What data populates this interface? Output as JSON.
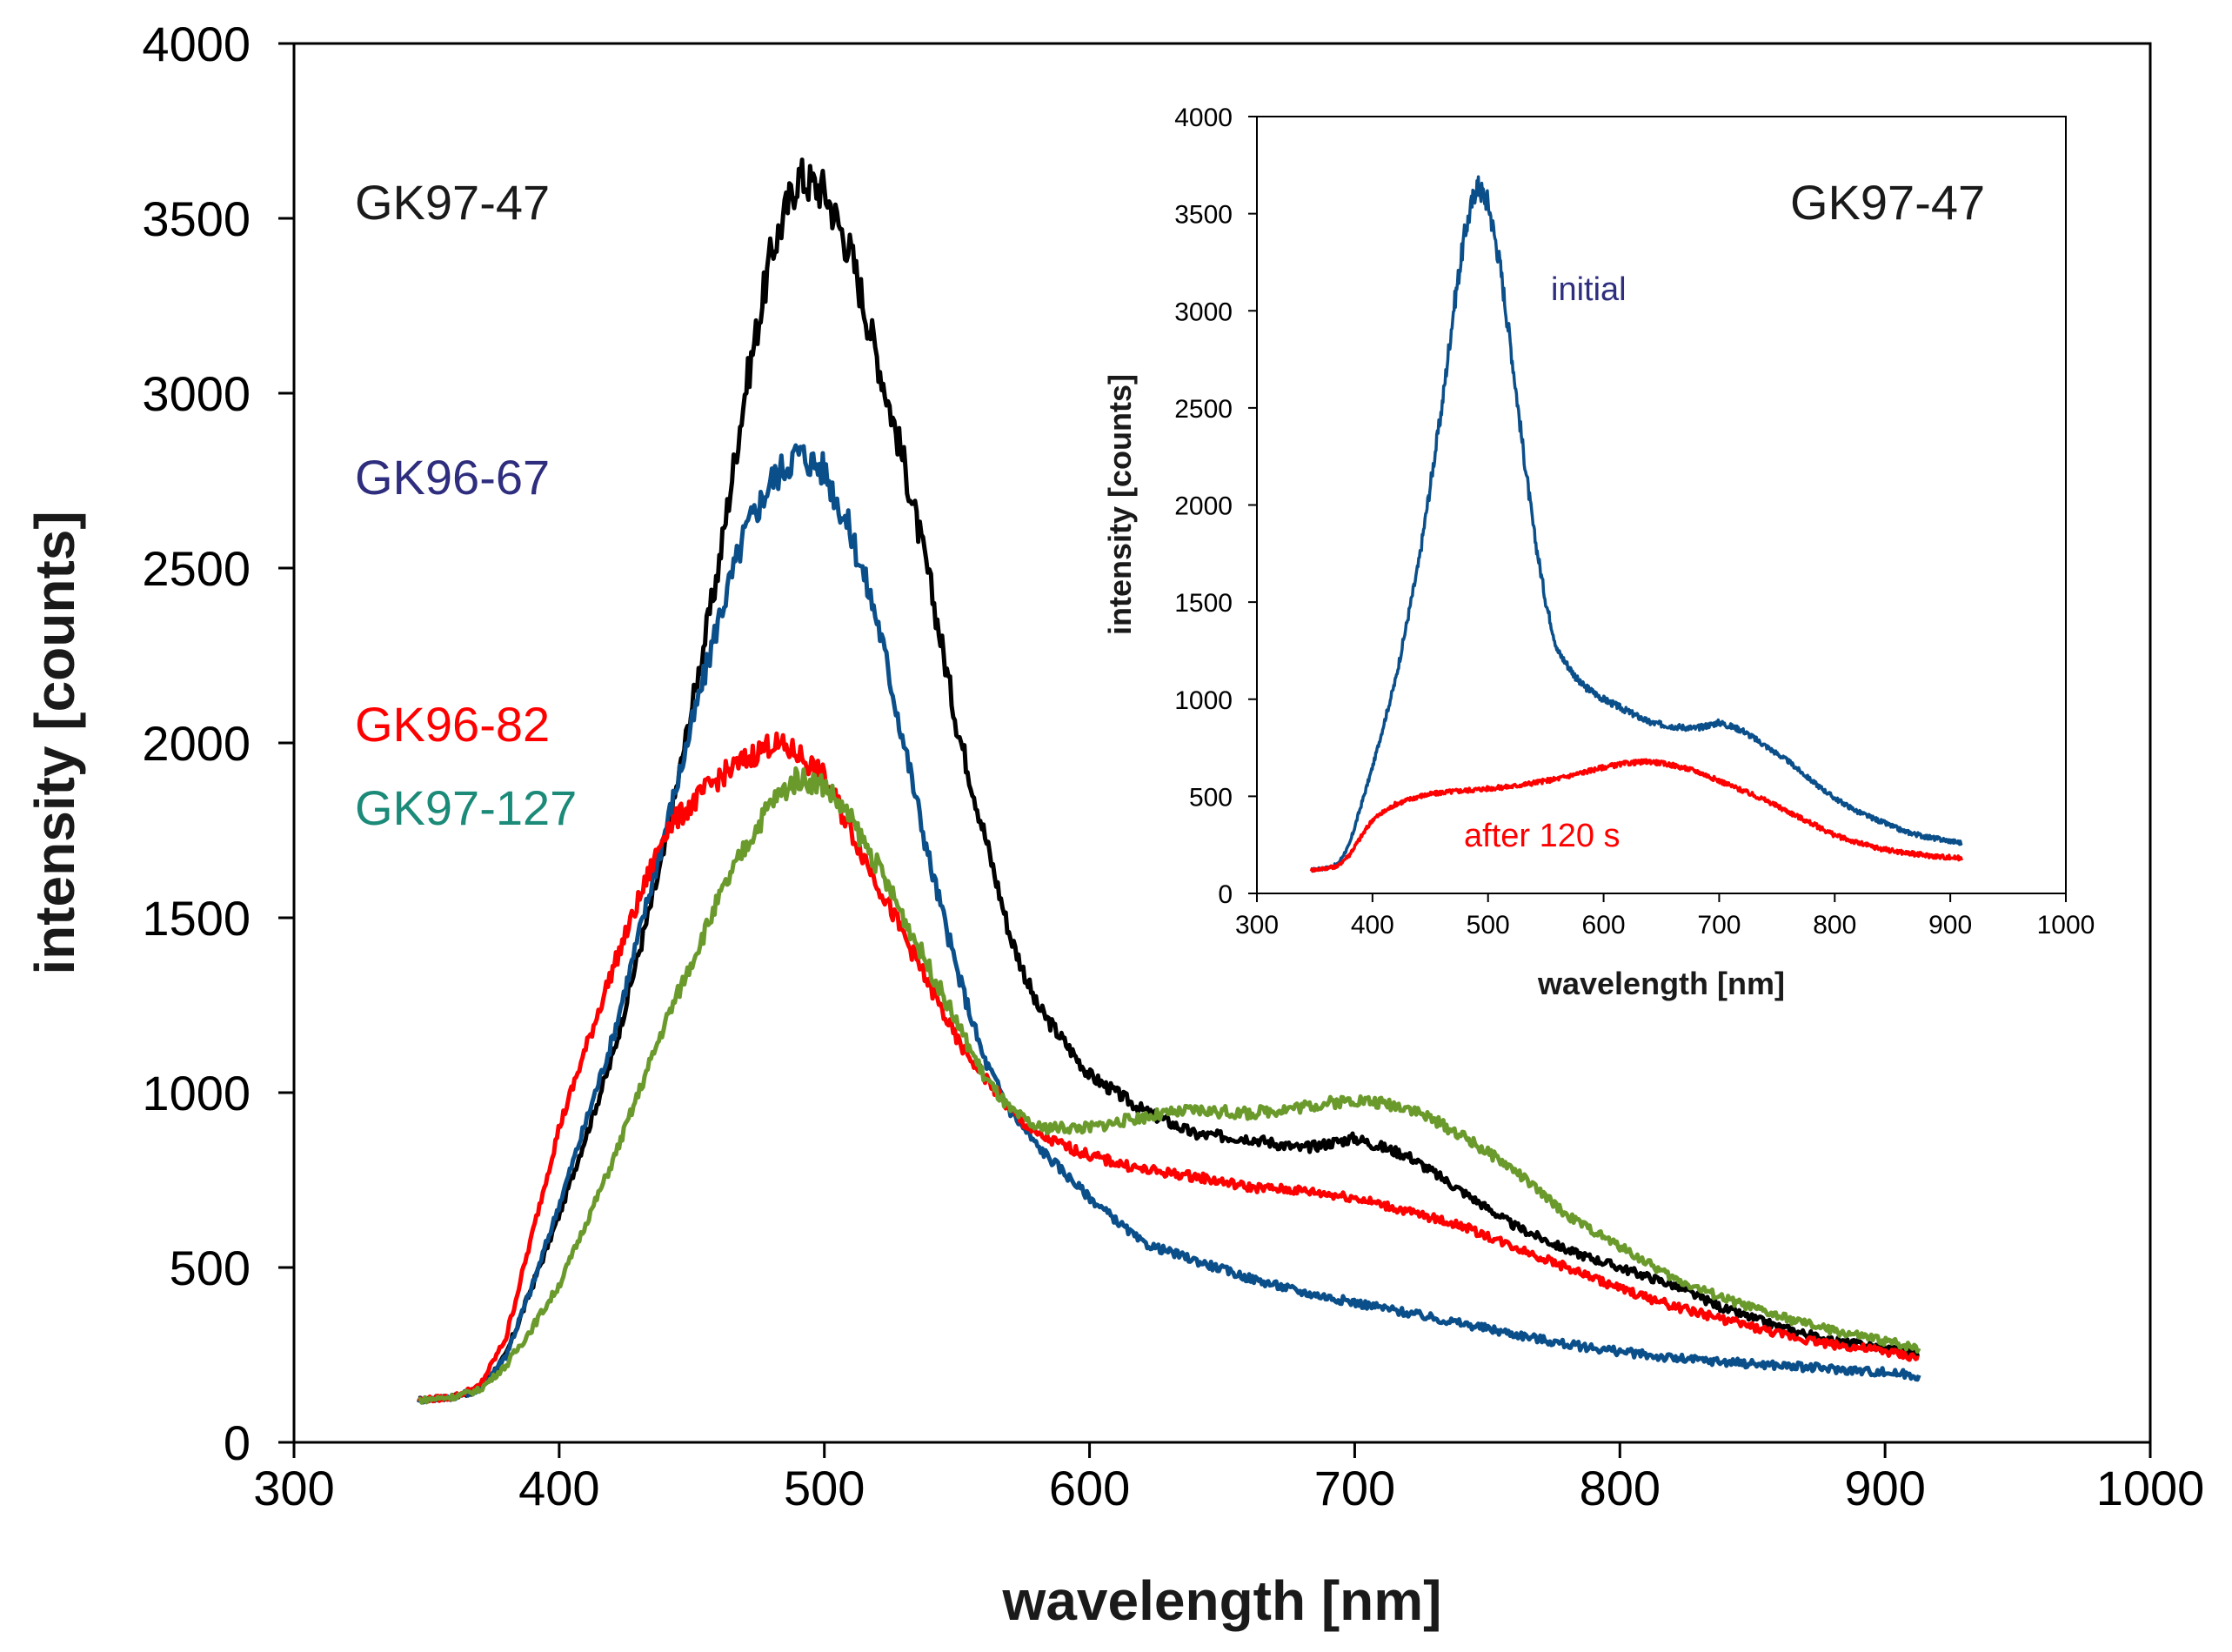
{
  "chart_data": [
    {
      "type": "line",
      "title": "",
      "xlabel": "wavelength [nm]",
      "ylabel": "intensity [counts]",
      "xlim": [
        300,
        1000
      ],
      "ylim": [
        0,
        4000
      ],
      "xticks": [
        "300",
        "400",
        "500",
        "600",
        "700",
        "800",
        "900",
        "1000"
      ],
      "yticks": [
        "0",
        "500",
        "1000",
        "1500",
        "2000",
        "2500",
        "3000",
        "3500",
        "4000"
      ],
      "grid": false,
      "series": [
        {
          "name": "GK97-47",
          "color": "#000000",
          "x": [
            347,
            360,
            370,
            380,
            390,
            400,
            420,
            440,
            460,
            470,
            480,
            490,
            500,
            510,
            520,
            530,
            540,
            550,
            560,
            570,
            580,
            600,
            620,
            640,
            660,
            680,
            700,
            720,
            740,
            760,
            780,
            800,
            820,
            840,
            860,
            880,
            900,
            913
          ],
          "y": [
            120,
            130,
            150,
            250,
            450,
            650,
            1100,
            1700,
            2500,
            3000,
            3400,
            3620,
            3580,
            3400,
            3100,
            2800,
            2450,
            2050,
            1750,
            1450,
            1250,
            1050,
            950,
            880,
            870,
            840,
            870,
            820,
            720,
            620,
            550,
            500,
            450,
            380,
            330,
            290,
            270,
            250
          ]
        },
        {
          "name": "GK96-67",
          "color": "#0b4f8a",
          "x": [
            347,
            360,
            370,
            380,
            390,
            400,
            420,
            440,
            460,
            470,
            480,
            490,
            500,
            510,
            520,
            530,
            540,
            550,
            560,
            570,
            580,
            600,
            620,
            640,
            660,
            680,
            700,
            720,
            740,
            760,
            780,
            800,
            820,
            840,
            860,
            880,
            900,
            913
          ],
          "y": [
            120,
            130,
            150,
            250,
            450,
            680,
            1150,
            1750,
            2350,
            2600,
            2750,
            2830,
            2780,
            2600,
            2350,
            2000,
            1650,
            1350,
            1100,
            950,
            850,
            700,
            570,
            520,
            470,
            430,
            400,
            370,
            340,
            310,
            280,
            260,
            240,
            230,
            220,
            210,
            200,
            190
          ]
        },
        {
          "name": "GK96-82",
          "color": "#ff0000",
          "x": [
            347,
            360,
            370,
            380,
            390,
            400,
            420,
            440,
            460,
            470,
            480,
            490,
            500,
            510,
            520,
            530,
            540,
            550,
            560,
            570,
            580,
            600,
            620,
            640,
            660,
            680,
            700,
            720,
            740,
            760,
            780,
            800,
            820,
            840,
            860,
            880,
            900,
            913
          ],
          "y": [
            120,
            130,
            160,
            300,
            600,
            900,
            1350,
            1750,
            1900,
            1950,
            2000,
            1970,
            1900,
            1750,
            1600,
            1450,
            1300,
            1150,
            1050,
            950,
            880,
            820,
            780,
            760,
            730,
            720,
            700,
            660,
            620,
            560,
            500,
            440,
            390,
            350,
            310,
            280,
            260,
            240
          ]
        },
        {
          "name": "GK97-127",
          "color": "#6b9a2c",
          "x": [
            347,
            360,
            370,
            380,
            390,
            400,
            420,
            440,
            460,
            470,
            480,
            490,
            500,
            510,
            520,
            530,
            540,
            550,
            560,
            570,
            580,
            600,
            620,
            640,
            660,
            680,
            700,
            720,
            740,
            760,
            780,
            800,
            820,
            840,
            860,
            880,
            900,
            913
          ],
          "y": [
            120,
            130,
            150,
            220,
            330,
            450,
            800,
            1200,
            1550,
            1700,
            1830,
            1900,
            1880,
            1780,
            1650,
            1500,
            1350,
            1200,
            1050,
            950,
            900,
            900,
            930,
            950,
            940,
            960,
            980,
            960,
            880,
            780,
            650,
            560,
            470,
            410,
            360,
            320,
            290,
            270
          ]
        }
      ],
      "legend_labels": [
        {
          "text": "GK97-47",
          "color": "#1a1a1a"
        },
        {
          "text": "GK96-67",
          "color": "#2e2d7e"
        },
        {
          "text": "GK96-82",
          "color": "#ff0000"
        },
        {
          "text": "GK97-127",
          "color": "#1b8a78"
        }
      ]
    },
    {
      "type": "line",
      "title": "GK97-47",
      "xlabel": "wavelength [nm]",
      "ylabel": "intensity [counts]",
      "xlim": [
        300,
        1000
      ],
      "ylim": [
        0,
        4000
      ],
      "xticks": [
        "300",
        "400",
        "500",
        "600",
        "700",
        "800",
        "900",
        "1000"
      ],
      "yticks": [
        "0",
        "500",
        "1000",
        "1500",
        "2000",
        "2500",
        "3000",
        "3500",
        "4000"
      ],
      "grid": false,
      "series": [
        {
          "name": "initial",
          "color": "#0b4f8a",
          "x": [
            347,
            360,
            370,
            380,
            390,
            400,
            420,
            440,
            460,
            470,
            480,
            490,
            500,
            510,
            520,
            530,
            540,
            550,
            560,
            580,
            600,
            620,
            640,
            660,
            680,
            700,
            720,
            740,
            760,
            780,
            800,
            820,
            840,
            860,
            880,
            900,
            910
          ],
          "y": [
            120,
            130,
            150,
            250,
            450,
            650,
            1100,
            1700,
            2500,
            3000,
            3400,
            3650,
            3560,
            3250,
            2800,
            2300,
            1850,
            1500,
            1250,
            1080,
            1000,
            940,
            880,
            860,
            850,
            880,
            840,
            760,
            680,
            580,
            490,
            420,
            370,
            320,
            290,
            270,
            260
          ]
        },
        {
          "name": "after 120 s",
          "color": "#ff0000",
          "x": [
            347,
            360,
            370,
            380,
            390,
            400,
            420,
            440,
            460,
            480,
            500,
            520,
            540,
            560,
            580,
            600,
            620,
            640,
            660,
            680,
            700,
            720,
            740,
            760,
            780,
            800,
            820,
            840,
            860,
            880,
            900,
            910
          ],
          "y": [
            120,
            130,
            140,
            200,
            290,
            380,
            460,
            500,
            520,
            530,
            540,
            550,
            570,
            590,
            620,
            650,
            670,
            680,
            660,
            630,
            580,
            530,
            480,
            420,
            360,
            300,
            260,
            230,
            210,
            195,
            185,
            180
          ]
        }
      ],
      "legend_labels": [
        {
          "text": "initial",
          "color": "#2e2d7e"
        },
        {
          "text": "after 120 s",
          "color": "#ff0000"
        }
      ]
    }
  ]
}
